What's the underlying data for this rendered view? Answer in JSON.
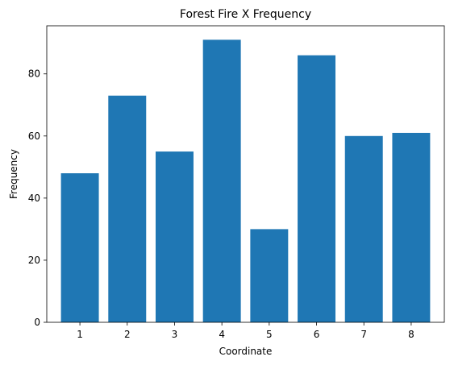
{
  "chart_data": {
    "type": "bar",
    "title": "Forest Fire X Frequency",
    "xlabel": "Coordinate",
    "ylabel": "Frequency",
    "categories": [
      "1",
      "2",
      "3",
      "4",
      "5",
      "6",
      "7",
      "8"
    ],
    "values": [
      48,
      73,
      55,
      91,
      30,
      86,
      60,
      61
    ],
    "ylim": [
      0,
      95.5
    ],
    "yticks": [
      "0",
      "20",
      "40",
      "60",
      "80"
    ],
    "bar_color": "#1f77b4",
    "grid": false
  }
}
